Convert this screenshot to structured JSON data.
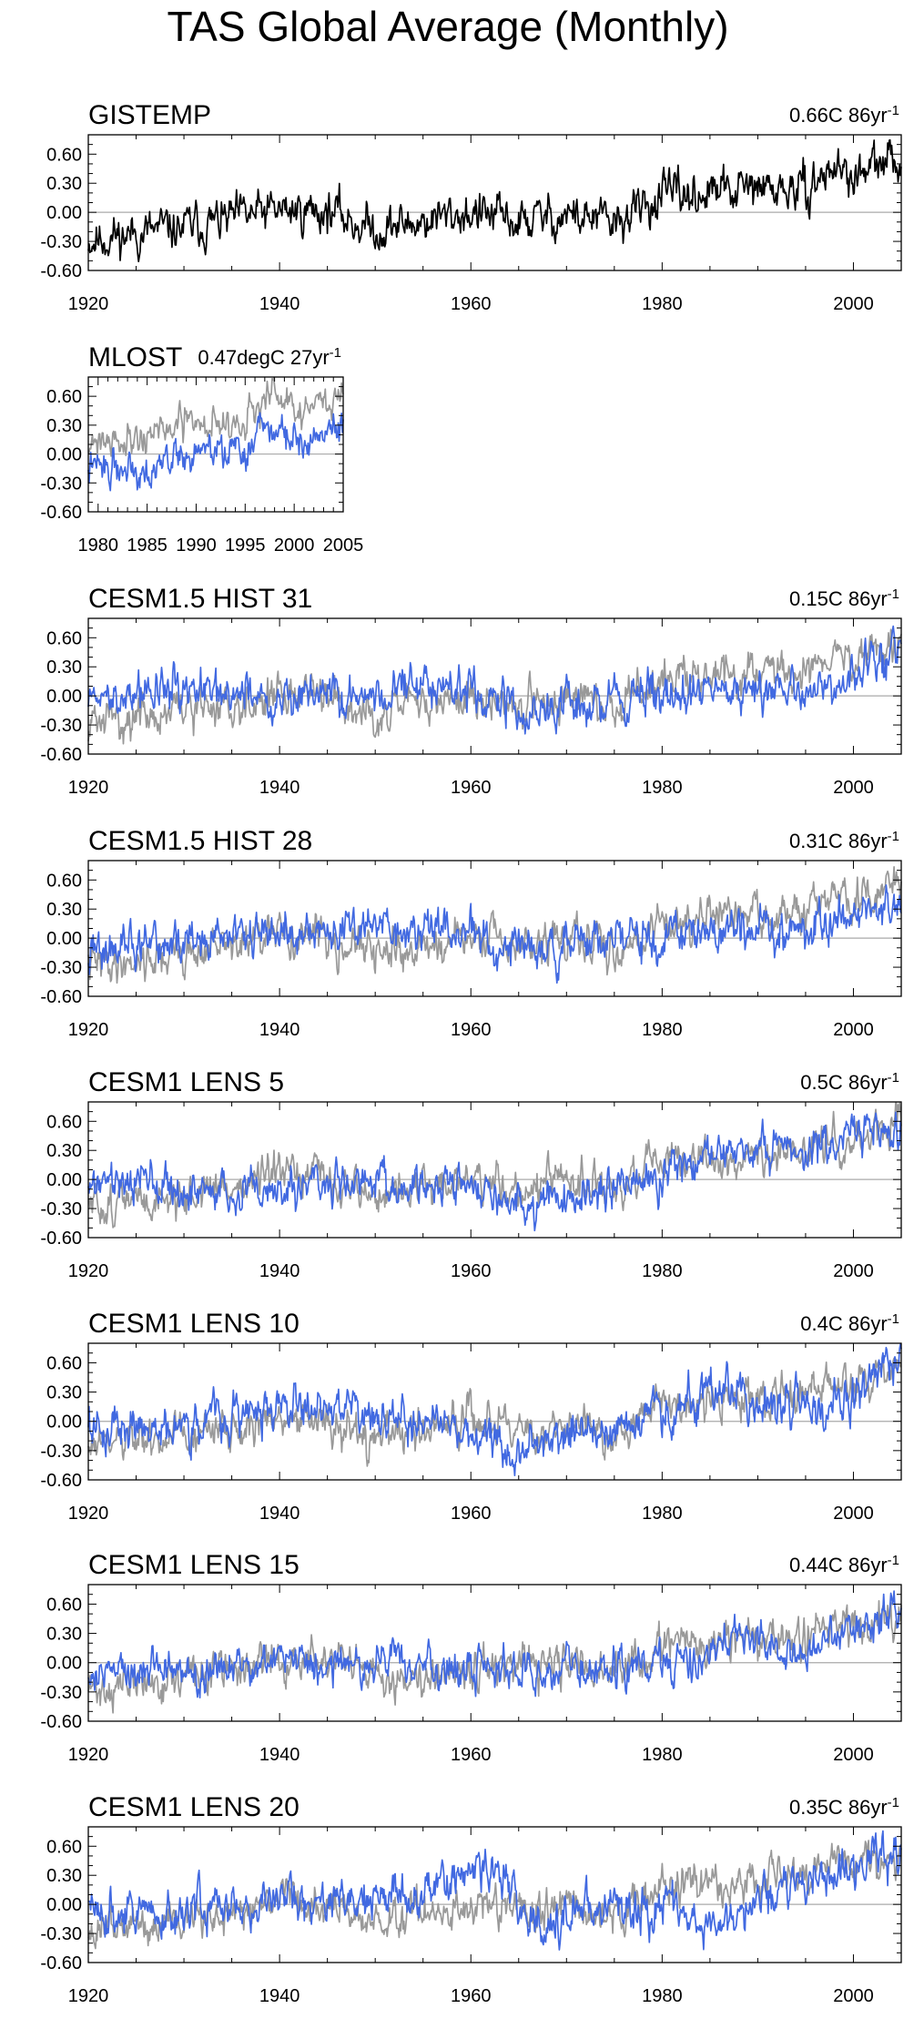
{
  "page_title": "TAS Global Average (Monthly)",
  "colors": {
    "observed": "#000000",
    "reference": "#999999",
    "model": "#4169e1",
    "zero_line": "#aaaaaa"
  },
  "chart_data": [
    {
      "type": "line",
      "title": "GISTEMP",
      "trend": "0.66C 86yr",
      "trend_sup": "-1",
      "xlim": [
        1920,
        2005
      ],
      "ylim": [
        -0.6,
        0.8
      ],
      "xticks": [
        "1920",
        "1940",
        "1960",
        "1980",
        "2000"
      ],
      "yticks": [
        "0.60",
        "0.30",
        "0.00",
        "-0.30",
        "-0.60"
      ],
      "series": [
        {
          "name": "GISTEMP",
          "color": "#000000",
          "seed": 11,
          "anchors": [
            [
              1920,
              -0.28
            ],
            [
              1930,
              -0.16
            ],
            [
              1940,
              0.02
            ],
            [
              1945,
              0.02
            ],
            [
              1950,
              -0.18
            ],
            [
              1960,
              0.0
            ],
            [
              1965,
              -0.1
            ],
            [
              1970,
              -0.02
            ],
            [
              1975,
              -0.12
            ],
            [
              1980,
              0.16
            ],
            [
              1990,
              0.24
            ],
            [
              1995,
              0.22
            ],
            [
              1998,
              0.48
            ],
            [
              2000,
              0.35
            ],
            [
              2005,
              0.56
            ]
          ],
          "noise": 0.14
        }
      ]
    },
    {
      "type": "line",
      "title": "MLOST",
      "trend": "0.47degC 27yr",
      "trend_sup": "-1",
      "xlim": [
        1979,
        2005
      ],
      "ylim": [
        -0.6,
        0.8
      ],
      "xticks": [
        "1980",
        "1985",
        "1990",
        "1995",
        "2000",
        "2005"
      ],
      "yticks": [
        "0.60",
        "0.30",
        "0.00",
        "-0.30",
        "-0.60"
      ],
      "series": [
        {
          "name": "reference",
          "color": "#999999",
          "seed": 21,
          "anchors": [
            [
              1979,
              0.15
            ],
            [
              1985,
              0.2
            ],
            [
              1990,
              0.32
            ],
            [
              1995,
              0.35
            ],
            [
              1998,
              0.62
            ],
            [
              2000,
              0.42
            ],
            [
              2005,
              0.6
            ]
          ],
          "noise": 0.12
        },
        {
          "name": "MLOST",
          "color": "#4169e1",
          "seed": 22,
          "anchors": [
            [
              1979,
              -0.15
            ],
            [
              1985,
              -0.12
            ],
            [
              1990,
              0.02
            ],
            [
              1995,
              0.02
            ],
            [
              1998,
              0.3
            ],
            [
              2000,
              0.15
            ],
            [
              2005,
              0.28
            ]
          ],
          "noise": 0.12
        }
      ]
    },
    {
      "type": "line",
      "title": "CESM1.5 HIST 31",
      "trend": "0.15C 86yr",
      "trend_sup": "-1",
      "xlim": [
        1920,
        2005
      ],
      "ylim": [
        -0.6,
        0.8
      ],
      "xticks": [
        "1920",
        "1940",
        "1960",
        "1980",
        "2000"
      ],
      "yticks": [
        "0.60",
        "0.30",
        "0.00",
        "-0.30",
        "-0.60"
      ],
      "series": [
        {
          "name": "reference",
          "color": "#999999",
          "seed": 31,
          "anchors": [
            [
              1920,
              -0.28
            ],
            [
              1930,
              -0.16
            ],
            [
              1940,
              0.02
            ],
            [
              1945,
              0.02
            ],
            [
              1950,
              -0.18
            ],
            [
              1960,
              0.0
            ],
            [
              1965,
              -0.1
            ],
            [
              1970,
              -0.02
            ],
            [
              1975,
              -0.12
            ],
            [
              1980,
              0.16
            ],
            [
              1990,
              0.24
            ],
            [
              1995,
              0.22
            ],
            [
              1998,
              0.48
            ],
            [
              2000,
              0.35
            ],
            [
              2005,
              0.56
            ]
          ],
          "noise": 0.13
        },
        {
          "name": "CESM1.5 HIST 31",
          "color": "#4169e1",
          "seed": 32,
          "anchors": [
            [
              1920,
              -0.05
            ],
            [
              1925,
              0.05
            ],
            [
              1930,
              0.05
            ],
            [
              1940,
              0.0
            ],
            [
              1950,
              0.0
            ],
            [
              1958,
              0.1
            ],
            [
              1965,
              -0.2
            ],
            [
              1970,
              -0.1
            ],
            [
              1980,
              0.0
            ],
            [
              1990,
              0.05
            ],
            [
              1995,
              0.05
            ],
            [
              2000,
              0.2
            ],
            [
              2005,
              0.45
            ]
          ],
          "noise": 0.14
        }
      ]
    },
    {
      "type": "line",
      "title": "CESM1.5 HIST 28",
      "trend": "0.31C 86yr",
      "trend_sup": "-1",
      "xlim": [
        1920,
        2005
      ],
      "ylim": [
        -0.6,
        0.8
      ],
      "xticks": [
        "1920",
        "1940",
        "1960",
        "1980",
        "2000"
      ],
      "yticks": [
        "0.60",
        "0.30",
        "0.00",
        "-0.30",
        "-0.60"
      ],
      "series": [
        {
          "name": "reference",
          "color": "#999999",
          "seed": 41,
          "anchors": [
            [
              1920,
              -0.28
            ],
            [
              1930,
              -0.16
            ],
            [
              1940,
              0.02
            ],
            [
              1945,
              0.02
            ],
            [
              1950,
              -0.18
            ],
            [
              1960,
              0.0
            ],
            [
              1965,
              -0.1
            ],
            [
              1970,
              -0.02
            ],
            [
              1975,
              -0.12
            ],
            [
              1980,
              0.16
            ],
            [
              1990,
              0.24
            ],
            [
              1995,
              0.22
            ],
            [
              1998,
              0.48
            ],
            [
              2000,
              0.35
            ],
            [
              2005,
              0.56
            ]
          ],
          "noise": 0.13
        },
        {
          "name": "CESM1.5 HIST 28",
          "color": "#4169e1",
          "seed": 42,
          "anchors": [
            [
              1920,
              -0.15
            ],
            [
              1930,
              -0.05
            ],
            [
              1940,
              0.05
            ],
            [
              1950,
              0.1
            ],
            [
              1960,
              0.05
            ],
            [
              1965,
              -0.15
            ],
            [
              1970,
              -0.05
            ],
            [
              1980,
              0.0
            ],
            [
              1990,
              0.1
            ],
            [
              1995,
              0.1
            ],
            [
              2000,
              0.3
            ],
            [
              2005,
              0.4
            ]
          ],
          "noise": 0.14
        }
      ]
    },
    {
      "type": "line",
      "title": "CESM1 LENS 5",
      "trend": "0.5C 86yr",
      "trend_sup": "-1",
      "xlim": [
        1920,
        2005
      ],
      "ylim": [
        -0.6,
        0.8
      ],
      "xticks": [
        "1920",
        "1940",
        "1960",
        "1980",
        "2000"
      ],
      "yticks": [
        "0.60",
        "0.30",
        "0.00",
        "-0.30",
        "-0.60"
      ],
      "series": [
        {
          "name": "reference",
          "color": "#999999",
          "seed": 51,
          "anchors": [
            [
              1920,
              -0.28
            ],
            [
              1930,
              -0.16
            ],
            [
              1940,
              0.02
            ],
            [
              1945,
              0.02
            ],
            [
              1950,
              -0.18
            ],
            [
              1960,
              0.0
            ],
            [
              1965,
              -0.1
            ],
            [
              1970,
              -0.02
            ],
            [
              1975,
              -0.12
            ],
            [
              1980,
              0.16
            ],
            [
              1990,
              0.24
            ],
            [
              1995,
              0.22
            ],
            [
              1998,
              0.48
            ],
            [
              2000,
              0.35
            ],
            [
              2005,
              0.56
            ]
          ],
          "noise": 0.13
        },
        {
          "name": "CESM1 LENS 5",
          "color": "#4169e1",
          "seed": 52,
          "anchors": [
            [
              1920,
              -0.1
            ],
            [
              1925,
              0.1
            ],
            [
              1930,
              -0.15
            ],
            [
              1940,
              -0.1
            ],
            [
              1950,
              0.0
            ],
            [
              1960,
              -0.05
            ],
            [
              1965,
              -0.3
            ],
            [
              1970,
              -0.2
            ],
            [
              1980,
              0.05
            ],
            [
              1990,
              0.3
            ],
            [
              1995,
              0.25
            ],
            [
              2000,
              0.45
            ],
            [
              2005,
              0.5
            ]
          ],
          "noise": 0.13
        }
      ]
    },
    {
      "type": "line",
      "title": "CESM1 LENS 10",
      "trend": "0.4C 86yr",
      "trend_sup": "-1",
      "xlim": [
        1920,
        2005
      ],
      "ylim": [
        -0.6,
        0.8
      ],
      "xticks": [
        "1920",
        "1940",
        "1960",
        "1980",
        "2000"
      ],
      "yticks": [
        "0.60",
        "0.30",
        "0.00",
        "-0.30",
        "-0.60"
      ],
      "series": [
        {
          "name": "reference",
          "color": "#999999",
          "seed": 61,
          "anchors": [
            [
              1920,
              -0.28
            ],
            [
              1930,
              -0.16
            ],
            [
              1940,
              0.02
            ],
            [
              1945,
              0.02
            ],
            [
              1950,
              -0.18
            ],
            [
              1960,
              0.0
            ],
            [
              1965,
              -0.1
            ],
            [
              1970,
              -0.02
            ],
            [
              1975,
              -0.12
            ],
            [
              1980,
              0.16
            ],
            [
              1990,
              0.24
            ],
            [
              1995,
              0.22
            ],
            [
              1998,
              0.48
            ],
            [
              2000,
              0.35
            ],
            [
              2005,
              0.56
            ]
          ],
          "noise": 0.13
        },
        {
          "name": "CESM1 LENS 10",
          "color": "#4169e1",
          "seed": 62,
          "anchors": [
            [
              1920,
              -0.05
            ],
            [
              1930,
              -0.05
            ],
            [
              1940,
              0.15
            ],
            [
              1950,
              0.1
            ],
            [
              1960,
              -0.1
            ],
            [
              1964,
              -0.25
            ],
            [
              1970,
              -0.1
            ],
            [
              1980,
              0.05
            ],
            [
              1987,
              0.45
            ],
            [
              1990,
              0.2
            ],
            [
              1995,
              0.15
            ],
            [
              2000,
              0.3
            ],
            [
              2005,
              0.6
            ]
          ],
          "noise": 0.14
        }
      ]
    },
    {
      "type": "line",
      "title": "CESM1 LENS 15",
      "trend": "0.44C 86yr",
      "trend_sup": "-1",
      "xlim": [
        1920,
        2005
      ],
      "ylim": [
        -0.6,
        0.8
      ],
      "xticks": [
        "1920",
        "1940",
        "1960",
        "1980",
        "2000"
      ],
      "yticks": [
        "0.60",
        "0.30",
        "0.00",
        "-0.30",
        "-0.60"
      ],
      "series": [
        {
          "name": "reference",
          "color": "#999999",
          "seed": 71,
          "anchors": [
            [
              1920,
              -0.28
            ],
            [
              1930,
              -0.16
            ],
            [
              1940,
              0.02
            ],
            [
              1945,
              0.02
            ],
            [
              1950,
              -0.18
            ],
            [
              1960,
              0.0
            ],
            [
              1965,
              -0.1
            ],
            [
              1970,
              -0.02
            ],
            [
              1975,
              -0.12
            ],
            [
              1980,
              0.16
            ],
            [
              1990,
              0.24
            ],
            [
              1995,
              0.22
            ],
            [
              1998,
              0.48
            ],
            [
              2000,
              0.35
            ],
            [
              2005,
              0.56
            ]
          ],
          "noise": 0.13
        },
        {
          "name": "CESM1 LENS 15",
          "color": "#4169e1",
          "seed": 72,
          "anchors": [
            [
              1920,
              -0.1
            ],
            [
              1930,
              -0.1
            ],
            [
              1940,
              0.05
            ],
            [
              1950,
              0.0
            ],
            [
              1960,
              -0.05
            ],
            [
              1970,
              -0.1
            ],
            [
              1980,
              0.0
            ],
            [
              1990,
              0.25
            ],
            [
              1993,
              0.0
            ],
            [
              2000,
              0.3
            ],
            [
              2005,
              0.5
            ]
          ],
          "noise": 0.13
        }
      ]
    },
    {
      "type": "line",
      "title": "CESM1 LENS 20",
      "trend": "0.35C 86yr",
      "trend_sup": "-1",
      "xlim": [
        1920,
        2005
      ],
      "ylim": [
        -0.6,
        0.8
      ],
      "xticks": [
        "1920",
        "1940",
        "1960",
        "1980",
        "2000"
      ],
      "yticks": [
        "0.60",
        "0.30",
        "0.00",
        "-0.30",
        "-0.60"
      ],
      "series": [
        {
          "name": "reference",
          "color": "#999999",
          "seed": 81,
          "anchors": [
            [
              1920,
              -0.28
            ],
            [
              1930,
              -0.16
            ],
            [
              1940,
              0.02
            ],
            [
              1945,
              0.02
            ],
            [
              1950,
              -0.18
            ],
            [
              1960,
              0.0
            ],
            [
              1965,
              -0.1
            ],
            [
              1970,
              -0.02
            ],
            [
              1975,
              -0.12
            ],
            [
              1980,
              0.16
            ],
            [
              1990,
              0.24
            ],
            [
              1995,
              0.22
            ],
            [
              1998,
              0.48
            ],
            [
              2000,
              0.35
            ],
            [
              2005,
              0.56
            ]
          ],
          "noise": 0.13
        },
        {
          "name": "CESM1 LENS 20",
          "color": "#4169e1",
          "seed": 82,
          "anchors": [
            [
              1920,
              -0.05
            ],
            [
              1930,
              -0.1
            ],
            [
              1940,
              0.05
            ],
            [
              1950,
              0.05
            ],
            [
              1958,
              0.25
            ],
            [
              1963,
              0.35
            ],
            [
              1966,
              -0.2
            ],
            [
              1970,
              -0.1
            ],
            [
              1980,
              0.0
            ],
            [
              1985,
              -0.25
            ],
            [
              1990,
              0.1
            ],
            [
              2000,
              0.35
            ],
            [
              2005,
              0.5
            ]
          ],
          "noise": 0.14
        }
      ]
    }
  ]
}
